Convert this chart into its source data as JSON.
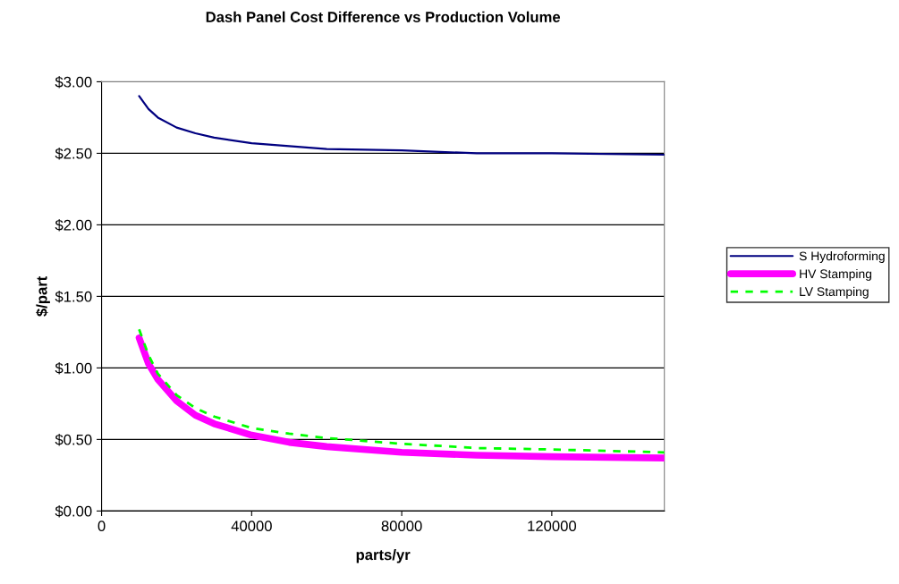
{
  "chart_data": {
    "type": "line",
    "title": "Dash Panel Cost Difference vs Production Volume",
    "xlabel": "parts/yr",
    "ylabel": "$/part",
    "x": [
      10000,
      12500,
      15000,
      20000,
      25000,
      30000,
      40000,
      50000,
      60000,
      80000,
      100000,
      120000,
      150000
    ],
    "series": [
      {
        "name": "S Hydroforming",
        "color": "#000080",
        "line_style": "solid",
        "values": [
          2.9,
          2.81,
          2.75,
          2.68,
          2.64,
          2.61,
          2.57,
          2.55,
          2.53,
          2.52,
          2.5,
          2.5,
          2.49
        ]
      },
      {
        "name": "HV Stamping",
        "color": "#ff00ff",
        "line_style": "solid",
        "values": [
          1.21,
          1.03,
          0.92,
          0.77,
          0.67,
          0.61,
          0.53,
          0.48,
          0.45,
          0.41,
          0.39,
          0.38,
          0.37
        ]
      },
      {
        "name": "LV Stamping",
        "color": "#00ff00",
        "line_style": "dashed",
        "values": [
          1.27,
          1.09,
          0.96,
          0.81,
          0.72,
          0.66,
          0.58,
          0.54,
          0.51,
          0.47,
          0.44,
          0.43,
          0.41
        ]
      }
    ],
    "xlim": [
      0,
      150000
    ],
    "xticks": [
      0,
      40000,
      80000,
      120000
    ],
    "ylim": [
      0,
      3
    ],
    "yticks": [
      {
        "value": 0,
        "label": "$0.00"
      },
      {
        "value": 0.5,
        "label": "$0.50"
      },
      {
        "value": 1,
        "label": "$1.00"
      },
      {
        "value": 1.5,
        "label": "$1.50"
      },
      {
        "value": 2,
        "label": "$2.00"
      },
      {
        "value": 2.5,
        "label": "$2.50"
      },
      {
        "value": 3,
        "label": "$3.00"
      }
    ],
    "grid": "y",
    "legend": "right",
    "marker": "none"
  }
}
